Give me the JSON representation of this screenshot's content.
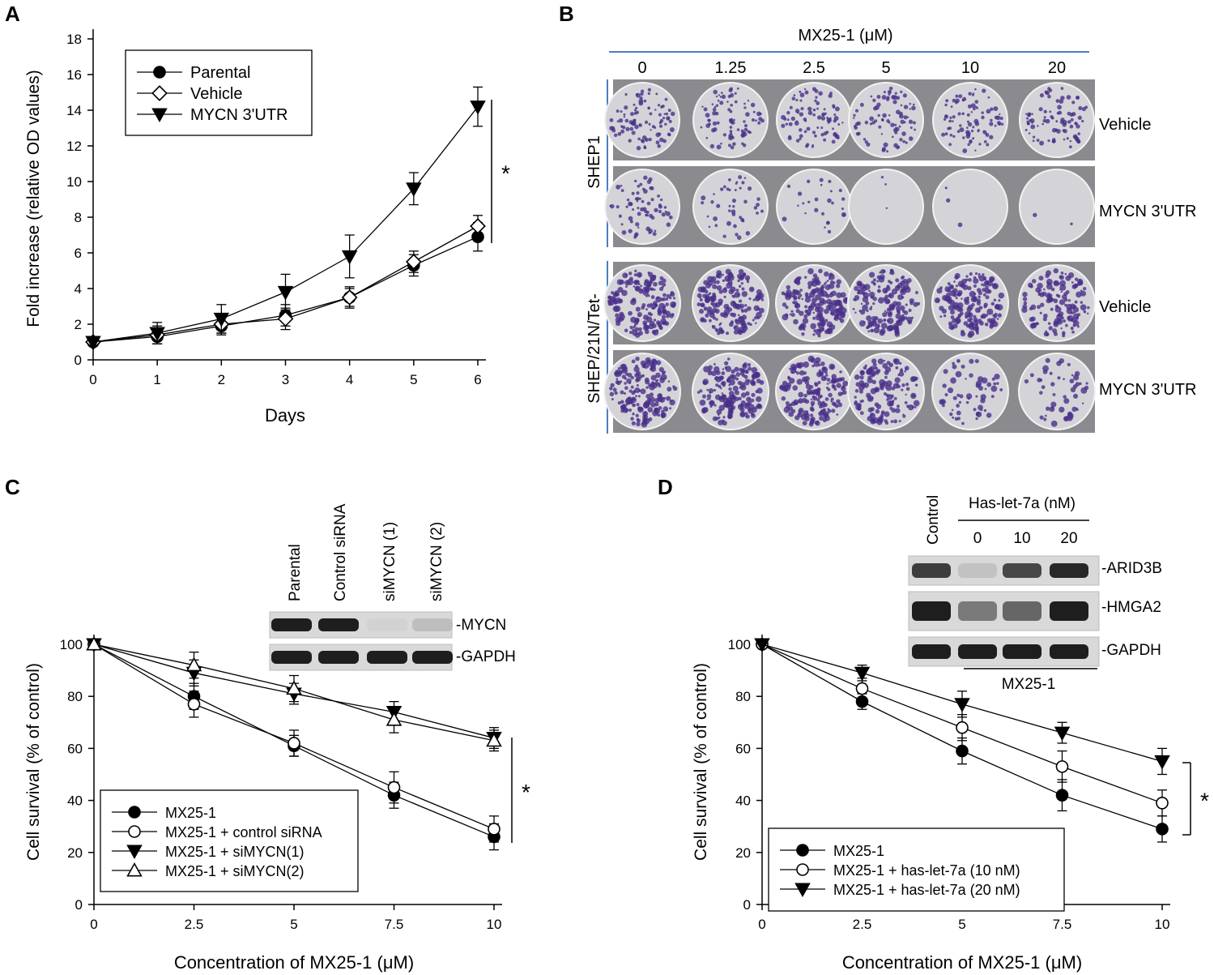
{
  "figure": {
    "panel_labels": [
      "A",
      "B",
      "C",
      "D"
    ]
  },
  "chart_data": [
    {
      "panel": "A",
      "type": "line",
      "xlabel": "Days",
      "ylabel": "Fold increase (relative OD values)",
      "xlim": [
        0,
        6
      ],
      "ylim": [
        0,
        18
      ],
      "xticks": [
        "0",
        "1",
        "2",
        "3",
        "4",
        "5",
        "6"
      ],
      "yticks": [
        "0",
        "2",
        "4",
        "6",
        "8",
        "10",
        "12",
        "14",
        "16",
        "18"
      ],
      "legend_position": "top-left",
      "series": [
        {
          "name": "Parental",
          "marker": "filled-circle",
          "x": [
            0,
            1,
            2,
            3,
            4,
            5,
            6
          ],
          "values": [
            1.0,
            1.3,
            1.9,
            2.5,
            3.5,
            5.3,
            6.9
          ],
          "errors": [
            0.2,
            0.4,
            0.5,
            0.6,
            0.6,
            0.6,
            0.8
          ]
        },
        {
          "name": "Vehicle",
          "marker": "open-diamond",
          "x": [
            0,
            1,
            2,
            3,
            4,
            5,
            6
          ],
          "values": [
            1.0,
            1.4,
            2.0,
            2.3,
            3.5,
            5.5,
            7.5
          ],
          "errors": [
            0.2,
            0.5,
            0.5,
            0.6,
            0.5,
            0.6,
            0.6
          ]
        },
        {
          "name": "MYCN 3'UTR",
          "marker": "filled-triangle-down",
          "x": [
            0,
            1,
            2,
            3,
            4,
            5,
            6
          ],
          "values": [
            1.0,
            1.5,
            2.3,
            3.8,
            5.8,
            9.6,
            14.2
          ],
          "errors": [
            0.2,
            0.6,
            0.8,
            1.0,
            1.2,
            0.9,
            1.1
          ]
        }
      ],
      "significance": "*"
    },
    {
      "panel": "C",
      "type": "line",
      "xlabel": "Concentration of MX25-1 (μM)",
      "ylabel": "Cell survival (% of control)",
      "xlim": [
        0,
        10
      ],
      "ylim": [
        0,
        100
      ],
      "x_numeric": [
        0,
        2.5,
        5,
        7.5,
        10
      ],
      "xticks": [
        "0",
        "2.5",
        "5",
        "7.5",
        "10"
      ],
      "yticks": [
        "0",
        "20",
        "40",
        "60",
        "80",
        "100"
      ],
      "legend_position": "bottom-left",
      "series": [
        {
          "name": "MX25-1",
          "marker": "filled-circle",
          "x": [
            0,
            2.5,
            5,
            7.5,
            10
          ],
          "values": [
            100,
            80,
            61,
            42,
            26
          ],
          "errors": [
            0,
            5,
            4,
            5,
            5
          ]
        },
        {
          "name": "MX25-1 + control siRNA",
          "marker": "open-circle",
          "x": [
            0,
            2.5,
            5,
            7.5,
            10
          ],
          "values": [
            100,
            77,
            62,
            45,
            29
          ],
          "errors": [
            0,
            5,
            5,
            6,
            5
          ]
        },
        {
          "name": "MX25-1 + siMYCN(1)",
          "marker": "filled-triangle-down",
          "x": [
            0,
            2.5,
            5,
            7.5,
            10
          ],
          "values": [
            100,
            89,
            81,
            74,
            64
          ],
          "errors": [
            0,
            5,
            4,
            4,
            4
          ]
        },
        {
          "name": "MX25-1 + siMYCN(2)",
          "marker": "open-triangle-up",
          "x": [
            0,
            2.5,
            5,
            7.5,
            10
          ],
          "values": [
            100,
            92,
            83,
            71,
            63
          ],
          "errors": [
            0,
            5,
            5,
            5,
            4
          ]
        }
      ],
      "significance": "*"
    },
    {
      "panel": "D",
      "type": "line",
      "xlabel": "Concentration of MX25-1 (μM)",
      "ylabel": "Cell survival (% of control)",
      "xlim": [
        0,
        10
      ],
      "ylim": [
        0,
        100
      ],
      "x_numeric": [
        0,
        2.5,
        5,
        7.5,
        10
      ],
      "xticks": [
        "0",
        "2.5",
        "5",
        "7.5",
        "10"
      ],
      "yticks": [
        "0",
        "20",
        "40",
        "60",
        "80",
        "100"
      ],
      "legend_position": "bottom-left",
      "series": [
        {
          "name": "MX25-1",
          "marker": "filled-circle",
          "x": [
            0,
            2.5,
            5,
            7.5,
            10
          ],
          "values": [
            100,
            78,
            59,
            42,
            29
          ],
          "errors": [
            0,
            3,
            5,
            6,
            5
          ]
        },
        {
          "name": "MX25-1 + has-let-7a (10 nM)",
          "marker": "open-circle",
          "x": [
            0,
            2.5,
            5,
            7.5,
            10
          ],
          "values": [
            100,
            83,
            68,
            53,
            39
          ],
          "errors": [
            0,
            4,
            5,
            6,
            5
          ]
        },
        {
          "name": "MX25-1 + has-let-7a (20 nM)",
          "marker": "filled-triangle-down",
          "x": [
            0,
            2.5,
            5,
            7.5,
            10
          ],
          "values": [
            100,
            89,
            77,
            66,
            55
          ],
          "errors": [
            0,
            3,
            5,
            4,
            5
          ]
        }
      ],
      "significance": "*"
    }
  ],
  "panel_b": {
    "header": "MX25-1  (μM)",
    "concentrations": [
      "0",
      "1.25",
      "2.5",
      "5",
      "10",
      "20"
    ],
    "cell_lines": [
      "SHEP1",
      "SHEP/21N/Tet-"
    ],
    "row_labels": [
      "Vehicle",
      "MYCN 3'UTR",
      "Vehicle",
      "MYCN 3'UTR"
    ],
    "colony_density": [
      [
        0.55,
        0.5,
        0.5,
        0.5,
        0.5,
        0.5
      ],
      [
        0.4,
        0.25,
        0.15,
        0.02,
        0.02,
        0.01
      ],
      [
        1.0,
        1.0,
        1.0,
        0.95,
        1.0,
        0.8
      ],
      [
        1.0,
        1.0,
        1.0,
        0.8,
        0.35,
        0.3
      ]
    ],
    "colony_color": "#4a2f8a",
    "plate_bg": "#d4d4d8"
  },
  "blot_c": {
    "lanes": [
      "Parental",
      "Control  siRNA",
      "siMYCN (1)",
      "siMYCN (2)"
    ],
    "bands": [
      "-MYCN",
      "-GAPDH"
    ],
    "intensity": [
      [
        1.0,
        1.0,
        0.12,
        0.22
      ],
      [
        1.0,
        1.0,
        1.0,
        1.0
      ]
    ]
  },
  "blot_d": {
    "control_lane": "Control",
    "group_label": "Has-let-7a  (nM)",
    "lanes": [
      "0",
      "10",
      "20"
    ],
    "bands": [
      "-ARID3B",
      "-HMGA2",
      "-GAPDH"
    ],
    "intensity": [
      [
        0.85,
        0.2,
        0.8,
        0.95
      ],
      [
        1.0,
        0.55,
        0.65,
        1.0
      ],
      [
        1.0,
        1.0,
        1.0,
        1.0
      ]
    ],
    "treatment_label": "MX25-1"
  }
}
